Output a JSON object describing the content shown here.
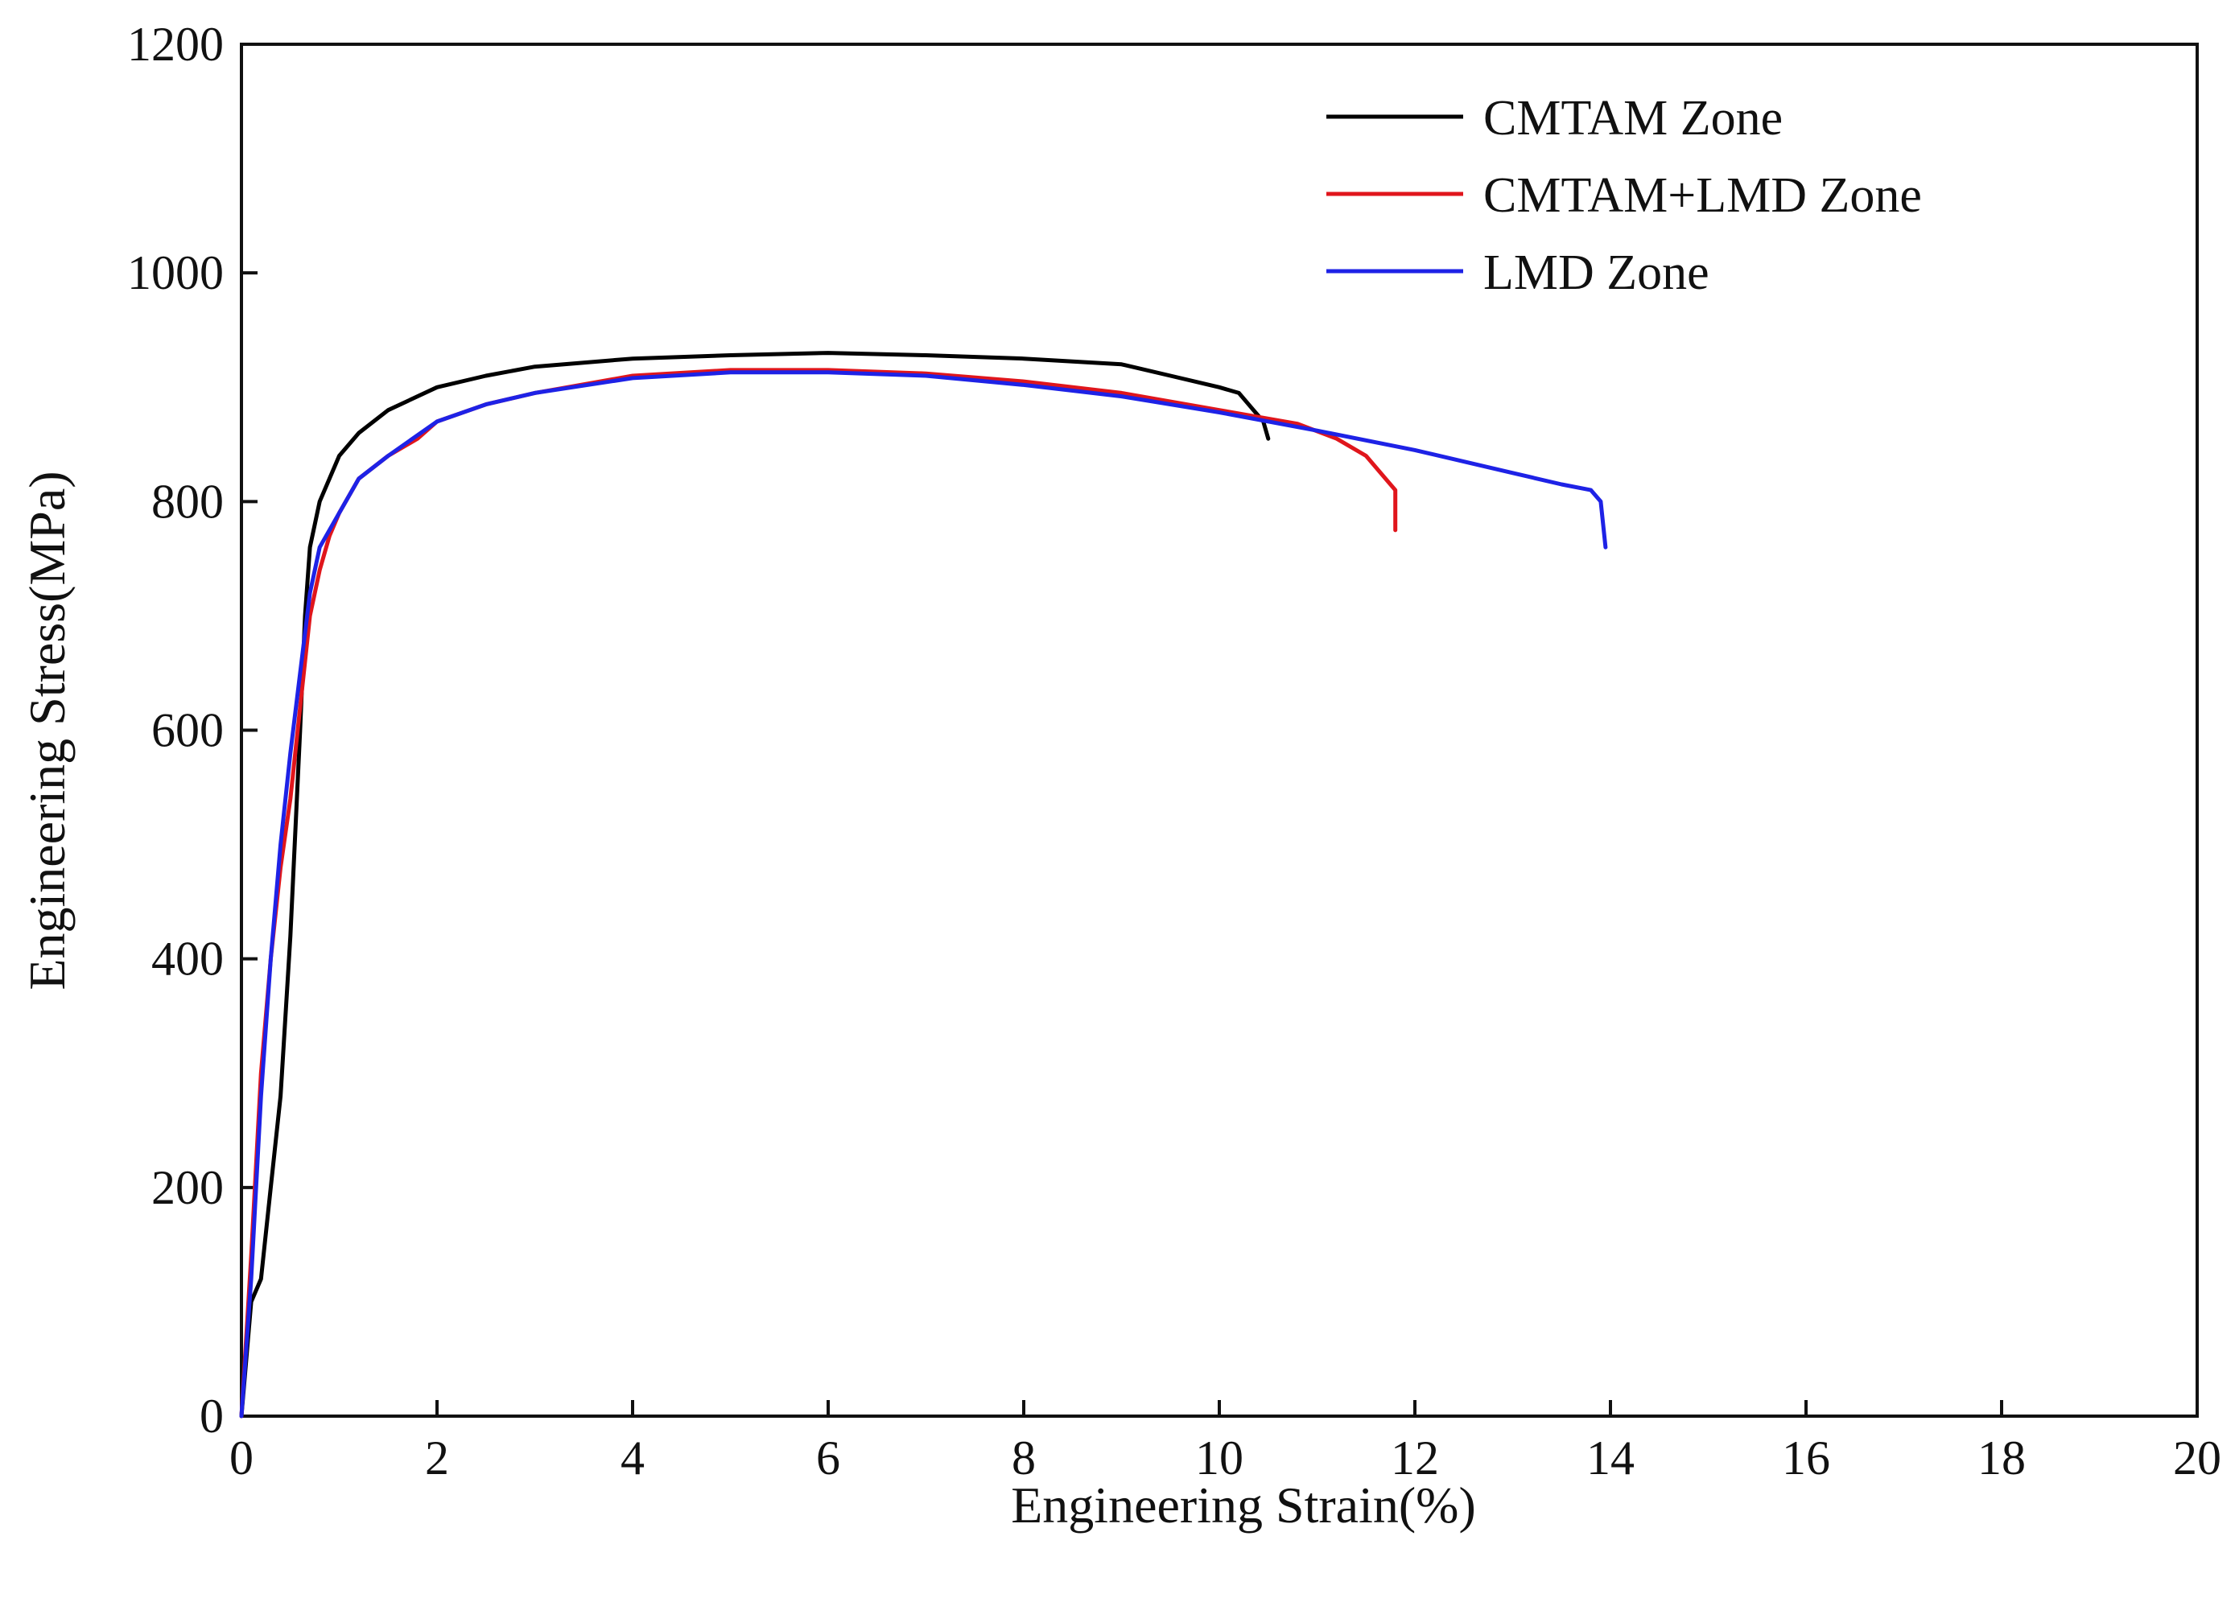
{
  "chart_data": {
    "type": "line",
    "title": "",
    "xlabel": "Engineering Strain(%)",
    "ylabel": "Engineering Stress(MPa)",
    "xlim": [
      0,
      20
    ],
    "ylim": [
      0,
      1200
    ],
    "xticks": [
      0,
      2,
      4,
      6,
      8,
      10,
      12,
      14,
      16,
      18,
      20
    ],
    "yticks": [
      0,
      200,
      400,
      600,
      800,
      1000,
      1200
    ],
    "grid": false,
    "legend_position": "top-right",
    "series": [
      {
        "name": "CMTAM Zone",
        "color": "#000000",
        "x": [
          0.0,
          0.1,
          0.2,
          0.3,
          0.4,
          0.5,
          0.6,
          0.65,
          0.7,
          0.8,
          1.0,
          1.2,
          1.5,
          2.0,
          2.5,
          3.0,
          4.0,
          5.0,
          6.0,
          7.0,
          8.0,
          9.0,
          9.5,
          10.0,
          10.2,
          10.35,
          10.45,
          10.5
        ],
        "y": [
          0,
          100,
          120,
          200,
          280,
          420,
          600,
          700,
          760,
          800,
          840,
          860,
          880,
          900,
          910,
          918,
          925,
          928,
          930,
          928,
          925,
          920,
          910,
          900,
          895,
          880,
          870,
          855
        ]
      },
      {
        "name": "CMTAM+LMD Zone",
        "color": "#e0161c",
        "x": [
          0.0,
          0.1,
          0.2,
          0.3,
          0.4,
          0.5,
          0.6,
          0.7,
          0.8,
          0.9,
          1.0,
          1.2,
          1.5,
          1.8,
          2.0,
          2.5,
          3.0,
          4.0,
          5.0,
          6.0,
          7.0,
          8.0,
          9.0,
          10.0,
          10.8,
          11.2,
          11.5,
          11.7,
          11.8,
          11.8
        ],
        "y": [
          0,
          140,
          300,
          400,
          480,
          540,
          620,
          700,
          740,
          770,
          790,
          820,
          840,
          855,
          870,
          885,
          895,
          910,
          915,
          915,
          912,
          905,
          895,
          880,
          868,
          855,
          840,
          820,
          810,
          775
        ]
      },
      {
        "name": "LMD Zone",
        "color": "#1e22e6",
        "x": [
          0.0,
          0.1,
          0.2,
          0.3,
          0.4,
          0.5,
          0.6,
          0.7,
          0.8,
          1.0,
          1.2,
          1.5,
          2.0,
          2.5,
          3.0,
          4.0,
          5.0,
          6.0,
          7.0,
          8.0,
          9.0,
          10.0,
          11.0,
          12.0,
          13.0,
          13.5,
          13.8,
          13.9,
          13.95
        ],
        "y": [
          0,
          120,
          280,
          400,
          500,
          580,
          650,
          720,
          760,
          790,
          820,
          840,
          870,
          885,
          895,
          908,
          913,
          913,
          910,
          902,
          892,
          878,
          862,
          845,
          825,
          815,
          810,
          800,
          760
        ]
      }
    ]
  }
}
